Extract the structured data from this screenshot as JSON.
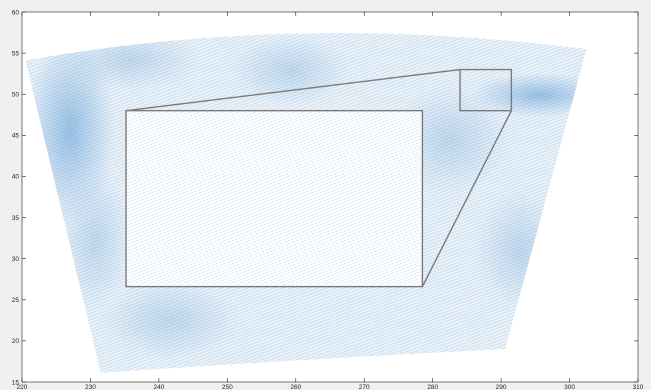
{
  "chart_data": {
    "type": "scatter",
    "title": "",
    "xlabel": "",
    "ylabel": "",
    "xlim": [
      220,
      310
    ],
    "ylim": [
      15,
      60
    ],
    "xticks": [
      220,
      230,
      240,
      250,
      260,
      270,
      280,
      290,
      300,
      310
    ],
    "yticks": [
      15,
      20,
      25,
      30,
      35,
      40,
      45,
      50,
      55,
      60
    ],
    "grid": false,
    "legend": "none",
    "colors": {
      "vector": "#5b93c6",
      "field_light": "#e6f0f8",
      "field_mid": "#b7d2ea",
      "field_dark": "#7fb0dc",
      "box": "#7a7a7a"
    },
    "wedge": {
      "top_left": [
        220.5,
        54.1
      ],
      "top_mid": [
        260,
        58.3
      ],
      "top_right": [
        302.5,
        55.5
      ],
      "bottom_right": [
        290.6,
        19
      ],
      "bottom_mid": [
        261,
        18.5
      ],
      "bottom_left": [
        231.5,
        16.1
      ]
    },
    "zoom_region": {
      "xmin": 284,
      "xmax": 291.5,
      "ymin": 48,
      "ymax": 53
    },
    "inset": {
      "xmin": 235.2,
      "xmax": 278.5,
      "ymin": 26.6,
      "ymax": 48
    }
  }
}
